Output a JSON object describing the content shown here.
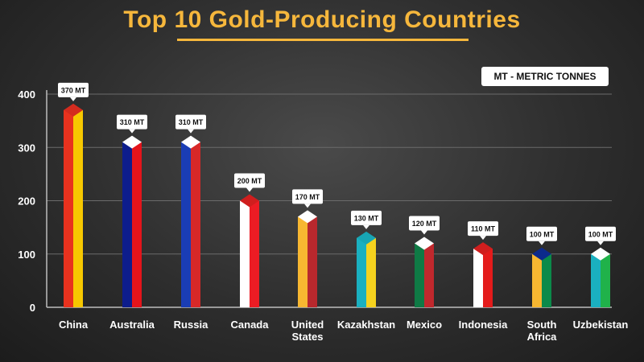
{
  "title": "Top 10 Gold-Producing Countries",
  "unit_note": "MT - METRIC TONNES",
  "chart_data": {
    "type": "bar",
    "title": "Top 10 Gold-Producing Countries",
    "categories": [
      "China",
      "Australia",
      "Russia",
      "Canada",
      "United States",
      "Kazakhstan",
      "Mexico",
      "Indonesia",
      "South Africa",
      "Uzbekistan"
    ],
    "category_lines": [
      [
        "China"
      ],
      [
        "Australia"
      ],
      [
        "Russia"
      ],
      [
        "Canada"
      ],
      [
        "United",
        "States"
      ],
      [
        "Kazakhstan"
      ],
      [
        "Mexico"
      ],
      [
        "Indonesia"
      ],
      [
        "South",
        "Africa"
      ],
      [
        "Uzbekistan"
      ]
    ],
    "values": [
      370,
      310,
      310,
      200,
      170,
      130,
      120,
      110,
      100,
      100
    ],
    "data_labels": [
      "370 MT",
      "310 MT",
      "310 MT",
      "200 MT",
      "170 MT",
      "130 MT",
      "120 MT",
      "110 MT",
      "100 MT",
      "100 MT"
    ],
    "unit": "MT",
    "ylim": [
      0,
      400
    ],
    "yticks": [
      0,
      100,
      200,
      300,
      400
    ],
    "grid": true,
    "bar_colors": [
      {
        "left": "#e8321e",
        "right": "#f7c800",
        "cap": "#d42b1e"
      },
      {
        "left": "#0d1d8c",
        "right": "#e4141b",
        "cap": "#ffffff"
      },
      {
        "left": "#1a3db5",
        "right": "#d72828",
        "cap": "#ffffff"
      },
      {
        "left": "#ffffff",
        "right": "#ec1c24",
        "cap": "#d01e1e"
      },
      {
        "left": "#f7b731",
        "right": "#b8282d",
        "cap": "#ffffff"
      },
      {
        "left": "#1ab0c0",
        "right": "#f5d21e",
        "cap": "#18a6b4"
      },
      {
        "left": "#0f7a45",
        "right": "#c0282d",
        "cap": "#ffffff"
      },
      {
        "left": "#ffffff",
        "right": "#e41b1b",
        "cap": "#d01e1e"
      },
      {
        "left": "#f7b731",
        "right": "#0b8a4a",
        "cap": "#0c2a8c"
      },
      {
        "left": "#1ab0c0",
        "right": "#20b24a",
        "cap": "#ffffff"
      }
    ]
  }
}
